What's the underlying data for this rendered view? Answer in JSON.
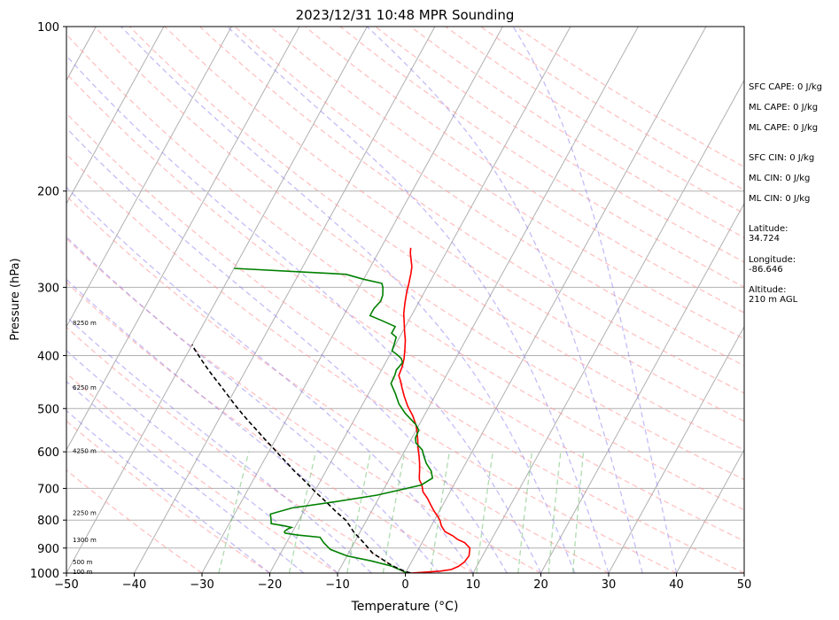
{
  "chart_data": {
    "type": "line",
    "title": "2023/12/31 10:48 MPR Sounding",
    "xlabel": "Temperature (°C)",
    "ylabel": "Pressure (hPa)",
    "xlim": [
      -50,
      50
    ],
    "ylim": [
      1000,
      100
    ],
    "y_scale": "log",
    "x_ticks": [
      "−50",
      "−40",
      "−30",
      "−20",
      "−10",
      "0",
      "10",
      "20",
      "30",
      "40",
      "50"
    ],
    "x_tick_values": [
      -50,
      -40,
      -30,
      -20,
      -10,
      0,
      10,
      20,
      30,
      40,
      50
    ],
    "y_ticks": [
      "100",
      "200",
      "300",
      "400",
      "500",
      "600",
      "700",
      "800",
      "900",
      "1000"
    ],
    "y_tick_values": [
      100,
      200,
      300,
      400,
      500,
      600,
      700,
      800,
      900,
      1000
    ],
    "grid": true,
    "height_labels": [
      {
        "text": "100 m",
        "p": 992
      },
      {
        "text": "500 m",
        "p": 952
      },
      {
        "text": "1300 m",
        "p": 867
      },
      {
        "text": "2250 m",
        "p": 775
      },
      {
        "text": "4250 m",
        "p": 596
      },
      {
        "text": "6250 m",
        "p": 457
      },
      {
        "text": "8250 m",
        "p": 348
      }
    ],
    "series": [
      {
        "color": "#ff0000",
        "points": [
          [
            0.8,
            1000
          ],
          [
            3,
            996
          ],
          [
            5,
            992
          ],
          [
            6.5,
            985
          ],
          [
            7.3,
            972
          ],
          [
            7.8,
            955
          ],
          [
            8.0,
            930
          ],
          [
            7.5,
            900
          ],
          [
            6.3,
            880
          ],
          [
            5.0,
            868
          ],
          [
            4.0,
            855
          ],
          [
            2.5,
            840
          ],
          [
            1.5,
            820
          ],
          [
            0.8,
            800
          ],
          [
            0.2,
            788
          ],
          [
            -0.8,
            770
          ],
          [
            -1.8,
            750
          ],
          [
            -2.8,
            730
          ],
          [
            -4.0,
            710
          ],
          [
            -4.7,
            690
          ],
          [
            -5.5,
            675
          ],
          [
            -5.8,
            665
          ],
          [
            -6.2,
            650
          ],
          [
            -6.8,
            630
          ],
          [
            -7.5,
            610
          ],
          [
            -8.3,
            590
          ],
          [
            -9.0,
            570
          ],
          [
            -9.8,
            550
          ],
          [
            -10.5,
            535
          ],
          [
            -11.7,
            515
          ],
          [
            -13.2,
            495
          ],
          [
            -14.5,
            475
          ],
          [
            -15.6,
            457
          ],
          [
            -16.3,
            445
          ],
          [
            -17.0,
            435
          ],
          [
            -17.2,
            420
          ],
          [
            -17.6,
            405
          ],
          [
            -18.2,
            390
          ],
          [
            -18.9,
            375
          ],
          [
            -19.8,
            360
          ],
          [
            -20.5,
            348
          ],
          [
            -21.3,
            335
          ],
          [
            -22.0,
            320
          ],
          [
            -22.6,
            306
          ],
          [
            -23.0,
            295
          ],
          [
            -23.5,
            283
          ],
          [
            -23.9,
            275
          ],
          [
            -24.5,
            268
          ],
          [
            -25.2,
            260
          ],
          [
            -25.6,
            254
          ]
        ]
      },
      {
        "color": "#008000",
        "points": [
          [
            0.3,
            1000
          ],
          [
            -0.5,
            992
          ],
          [
            -1.5,
            982
          ],
          [
            -2.5,
            972
          ],
          [
            -6,
            950
          ],
          [
            -10,
            930
          ],
          [
            -13,
            905
          ],
          [
            -14.5,
            880
          ],
          [
            -15.5,
            860
          ],
          [
            -19,
            852
          ],
          [
            -21,
            845
          ],
          [
            -21.2,
            840
          ],
          [
            -21,
            832
          ],
          [
            -20.5,
            825
          ],
          [
            -21.6,
            820
          ],
          [
            -23.8,
            812
          ],
          [
            -24.1,
            800
          ],
          [
            -24.7,
            780
          ],
          [
            -22.0,
            760
          ],
          [
            -16,
            740
          ],
          [
            -10.5,
            720
          ],
          [
            -4.8,
            690
          ],
          [
            -3.7,
            670
          ],
          [
            -4.5,
            650
          ],
          [
            -5.8,
            630
          ],
          [
            -6.8,
            610
          ],
          [
            -7.5,
            595
          ],
          [
            -9,
            578
          ],
          [
            -9.5,
            565
          ],
          [
            -9.6,
            548
          ],
          [
            -10.5,
            535
          ],
          [
            -13,
            510
          ],
          [
            -14.7,
            490
          ],
          [
            -16,
            470
          ],
          [
            -17.5,
            450
          ],
          [
            -17.6,
            435
          ],
          [
            -17.8,
            425
          ],
          [
            -17.5,
            412
          ],
          [
            -18.0,
            405
          ],
          [
            -19,
            398
          ],
          [
            -20,
            392
          ],
          [
            -20.2,
            382
          ],
          [
            -20.5,
            370
          ],
          [
            -21.5,
            364
          ],
          [
            -21.5,
            354
          ],
          [
            -24.0,
            345
          ],
          [
            -26.1,
            338
          ],
          [
            -26.1,
            328
          ],
          [
            -25.7,
            318
          ],
          [
            -25.9,
            310
          ],
          [
            -26.5,
            300
          ],
          [
            -27.0,
            295
          ],
          [
            -30.0,
            290
          ],
          [
            -33.0,
            284
          ],
          [
            -40.0,
            281
          ],
          [
            -50,
            277
          ]
        ]
      },
      {
        "color": "#000000",
        "dashed": true,
        "points": [
          [
            0.8,
            1000
          ],
          [
            -0.5,
            990
          ],
          [
            -2.0,
            975
          ],
          [
            -3.3,
            960
          ],
          [
            -4.8,
            940
          ],
          [
            -6.4,
            920
          ],
          [
            -7.5,
            900
          ],
          [
            -8.6,
            880
          ],
          [
            -9.8,
            860
          ],
          [
            -11.0,
            840
          ],
          [
            -12.0,
            820
          ],
          [
            -13.1,
            800
          ],
          [
            -15.0,
            775
          ],
          [
            -16.8,
            750
          ],
          [
            -18.3,
            730
          ],
          [
            -19.9,
            710
          ],
          [
            -21.4,
            690
          ],
          [
            -23.0,
            670
          ],
          [
            -24.7,
            650
          ],
          [
            -26.3,
            630
          ],
          [
            -28.0,
            610
          ],
          [
            -29.7,
            590
          ],
          [
            -31.5,
            570
          ],
          [
            -33.3,
            550
          ],
          [
            -35.2,
            530
          ],
          [
            -37.1,
            510
          ],
          [
            -39.0,
            490
          ],
          [
            -40.9,
            470
          ],
          [
            -42.9,
            450
          ],
          [
            -45.0,
            430
          ],
          [
            -47.1,
            410
          ],
          [
            -49.2,
            390
          ],
          [
            -50,
            382
          ]
        ]
      }
    ],
    "side_panel": {
      "sfc_cape": "SFC CAPE: 0 J/kg",
      "ml_cape_1": "ML CAPE: 0 J/kg",
      "ml_cape_2": "ML CAPE: 0 J/kg",
      "sfc_cin": "SFC CIN: 0 J/kg",
      "ml_cin_1": "ML CIN: 0 J/kg",
      "ml_cin_2": "ML CIN: 0 J/kg",
      "lat_label": "Latitude:",
      "lat_value": "34.724",
      "lon_label": "Longitude:",
      "lon_value": "-86.646",
      "alt_label": "Altitude:",
      "alt_value": "210 m AGL"
    }
  }
}
